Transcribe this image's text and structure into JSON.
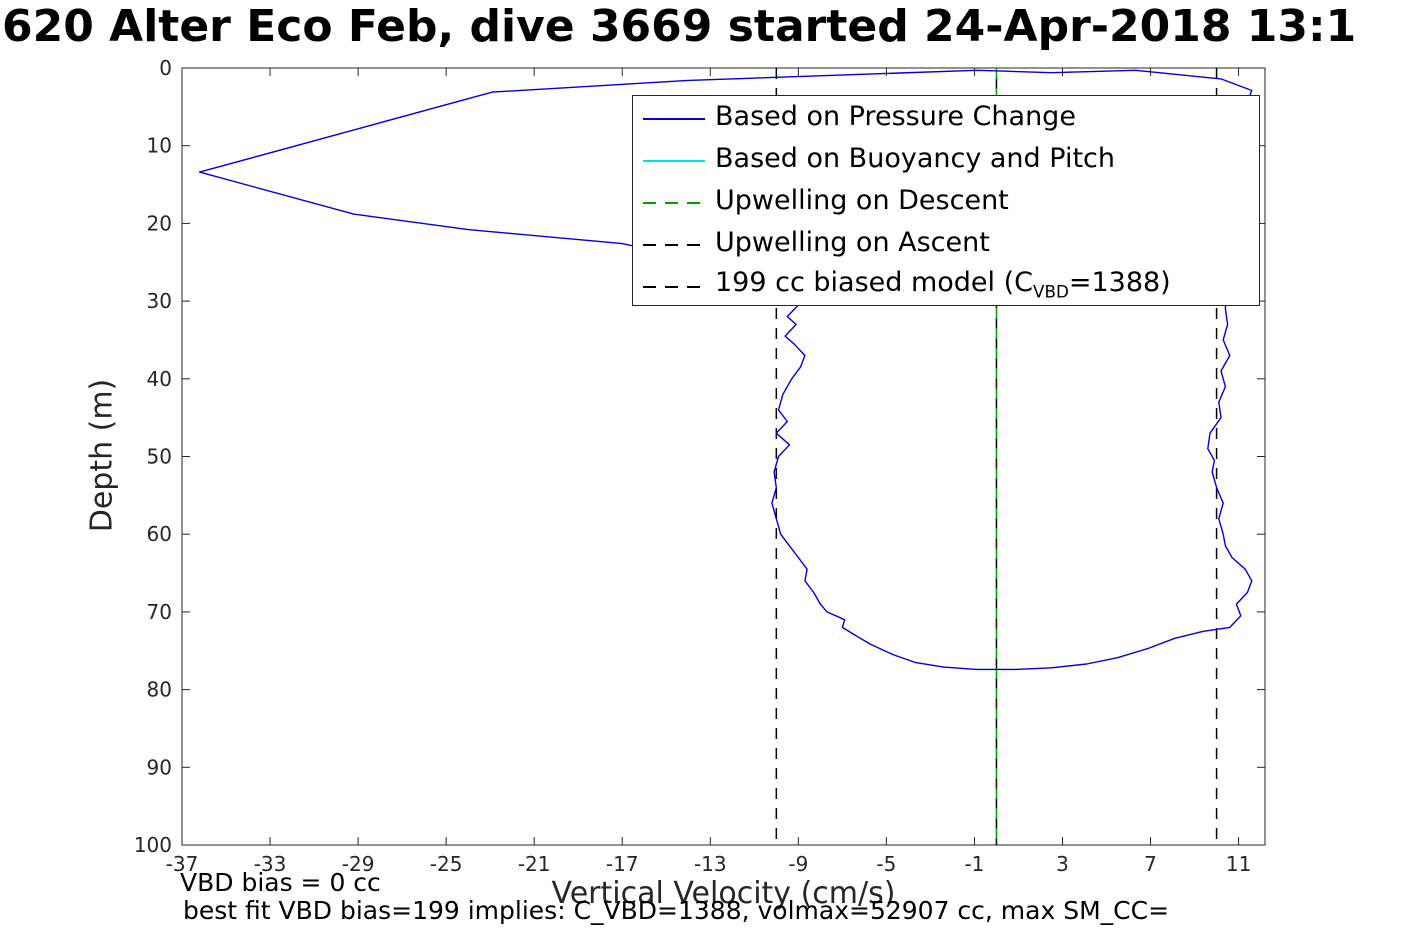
{
  "title": "620 Alter Eco Feb, dive 3669 started 24-Apr-2018 13:1",
  "annotations": {
    "vbd_bias": "VBD bias = 0 cc",
    "best_fit": "best fit VBD bias=199 implies: C_VBD=1388, volmax=52907 cc, max SM_CC="
  },
  "legend": [
    {
      "label": "Based on Pressure Change",
      "color": "#0000dd",
      "style": "solid"
    },
    {
      "label": "Based on Buoyancy and Pitch",
      "color": "#00e0e0",
      "style": "solid"
    },
    {
      "label": "Upwelling on Descent",
      "color": "#00a000",
      "style": "dashed"
    },
    {
      "label": "Upwelling on Ascent",
      "color": "#000000",
      "style": "dashed"
    },
    {
      "label_parts": [
        "199 cc biased model (C",
        "VBD",
        "=1388)"
      ],
      "color": "#000000",
      "style": "dashed"
    }
  ],
  "chart_data": {
    "type": "line",
    "title": "620 Alter Eco Feb, dive 3669 started 24-Apr-2018 13:1",
    "xlabel": "Vertical Velocity (cm/s)",
    "ylabel": "Depth (m)",
    "xlim": [
      -37,
      12.2
    ],
    "ylim": [
      0,
      100
    ],
    "y_axis_reversed": true,
    "grid": false,
    "legend_position": "inside upper right",
    "x_ticks": [
      -37,
      -33,
      -29,
      -25,
      -21,
      -17,
      -13,
      -9,
      -5,
      -1,
      3,
      7,
      11
    ],
    "y_ticks": [
      0,
      10,
      20,
      30,
      40,
      50,
      60,
      70,
      80,
      90,
      100
    ],
    "reference_lines": [
      {
        "name": "Upwelling on Ascent",
        "x": 0,
        "color": "#000000",
        "style": "dashed",
        "dash_offset": 10
      },
      {
        "name": "Upwelling on Descent",
        "x": 0,
        "color": "#00a000",
        "style": "dashed",
        "dash_offset": 0
      },
      {
        "name": "199 cc biased model (C_VBD=1388) descent",
        "x": -10,
        "color": "#000000",
        "style": "dashed",
        "dash_offset": 0
      },
      {
        "name": "199 cc biased model (C_VBD=1388) ascent",
        "x": 10,
        "color": "#000000",
        "style": "dashed",
        "dash_offset": 0
      }
    ],
    "series": [
      {
        "name": "Based on Pressure Change",
        "color": "#0000dd",
        "style": "solid",
        "points": [
          [
            -0.9,
            0.3
          ],
          [
            -14,
            1.6
          ],
          [
            -22.9,
            3.1
          ],
          [
            -36.2,
            13.4
          ],
          [
            -29.2,
            18.8
          ],
          [
            -24,
            20.8
          ],
          [
            -17,
            22.6
          ],
          [
            -13,
            25.0
          ],
          [
            -10.5,
            27.0
          ],
          [
            -9.4,
            29.0
          ],
          [
            -9.0,
            30.5
          ],
          [
            -9.5,
            32.0
          ],
          [
            -9.1,
            33.0
          ],
          [
            -9.6,
            34.5
          ],
          [
            -9.2,
            35.5
          ],
          [
            -8.7,
            37.0
          ],
          [
            -8.9,
            38.5
          ],
          [
            -9.3,
            40.0
          ],
          [
            -9.7,
            42.0
          ],
          [
            -9.9,
            44.0
          ],
          [
            -9.5,
            45.5
          ],
          [
            -10.0,
            47.0
          ],
          [
            -9.4,
            48.5
          ],
          [
            -9.9,
            50.0
          ],
          [
            -10.1,
            52.0
          ],
          [
            -10.0,
            54.0
          ],
          [
            -10.2,
            56.0
          ],
          [
            -10.0,
            58.0
          ],
          [
            -9.8,
            60.0
          ],
          [
            -9.4,
            61.5
          ],
          [
            -9.0,
            63.0
          ],
          [
            -8.6,
            64.5
          ],
          [
            -8.7,
            66.0
          ],
          [
            -8.3,
            67.5
          ],
          [
            -8.0,
            69.0
          ],
          [
            -7.7,
            70.0
          ],
          [
            -6.9,
            71.0
          ],
          [
            -7.0,
            72.0
          ],
          [
            -6.3,
            73.2
          ],
          [
            -5.7,
            74.2
          ],
          [
            -4.7,
            75.5
          ],
          [
            -3.7,
            76.5
          ],
          [
            -2.4,
            77.1
          ],
          [
            -0.9,
            77.4
          ],
          [
            0.9,
            77.4
          ],
          [
            2.5,
            77.2
          ],
          [
            4.1,
            76.7
          ],
          [
            5.5,
            75.9
          ],
          [
            6.9,
            74.7
          ],
          [
            8.1,
            73.4
          ],
          [
            9.4,
            72.5
          ],
          [
            10.6,
            72.0
          ],
          [
            11.1,
            70.5
          ],
          [
            10.9,
            69.0
          ],
          [
            11.4,
            67.5
          ],
          [
            11.6,
            66.0
          ],
          [
            11.3,
            64.5
          ],
          [
            10.7,
            63.0
          ],
          [
            10.4,
            61.5
          ],
          [
            10.3,
            60.0
          ],
          [
            10.1,
            58.0
          ],
          [
            10.3,
            56.0
          ],
          [
            10.0,
            54.0
          ],
          [
            9.8,
            52.0
          ],
          [
            9.9,
            50.5
          ],
          [
            9.6,
            49.0
          ],
          [
            9.7,
            47.0
          ],
          [
            10.2,
            45.0
          ],
          [
            10.1,
            43.0
          ],
          [
            10.4,
            41.0
          ],
          [
            10.2,
            39.0
          ],
          [
            10.6,
            37.0
          ],
          [
            10.3,
            35.0
          ],
          [
            10.5,
            33.0
          ],
          [
            10.4,
            31.0
          ],
          [
            10.5,
            25.0
          ],
          [
            10.8,
            18.0
          ],
          [
            11.0,
            10.0
          ],
          [
            11.3,
            5.0
          ],
          [
            11.6,
            2.9
          ],
          [
            10.2,
            1.4
          ],
          [
            6.3,
            0.3
          ],
          [
            2.5,
            0.6
          ],
          [
            0.3,
            0.4
          ],
          [
            -0.9,
            0.3
          ]
        ]
      },
      {
        "name": "Based on Buoyancy and Pitch",
        "color": "#00e0e0",
        "style": "solid",
        "points": []
      }
    ]
  }
}
